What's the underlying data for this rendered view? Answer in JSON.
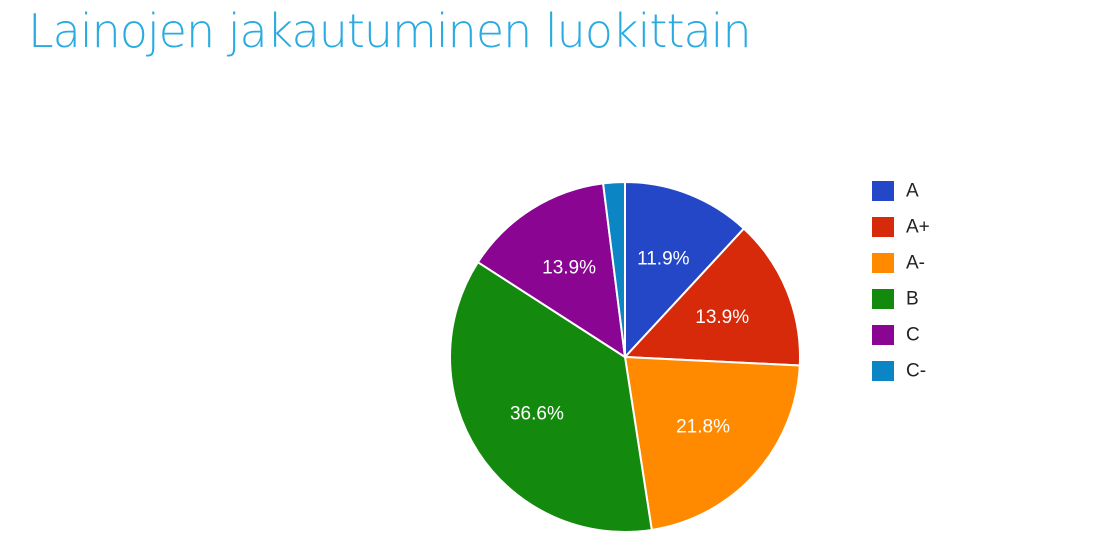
{
  "page": {
    "title": "Lainojen jakautuminen luokittain"
  },
  "chart_data": {
    "type": "pie",
    "title": "Lainojen jakautuminen luokittain",
    "categories": [
      "A",
      "A+",
      "A-",
      "B",
      "C",
      "C-"
    ],
    "values": [
      11.9,
      13.9,
      21.8,
      36.6,
      13.9,
      2.0
    ],
    "slice_labels": [
      "11.9%",
      "13.9%",
      "21.8%",
      "36.6%",
      "13.9%",
      ""
    ],
    "colors": [
      "#2447c7",
      "#d62a0a",
      "#ff8a00",
      "#138a0e",
      "#8a0592",
      "#0b85c4"
    ],
    "start_angle_deg": 0,
    "direction": "clockwise",
    "legend_position": "right"
  }
}
